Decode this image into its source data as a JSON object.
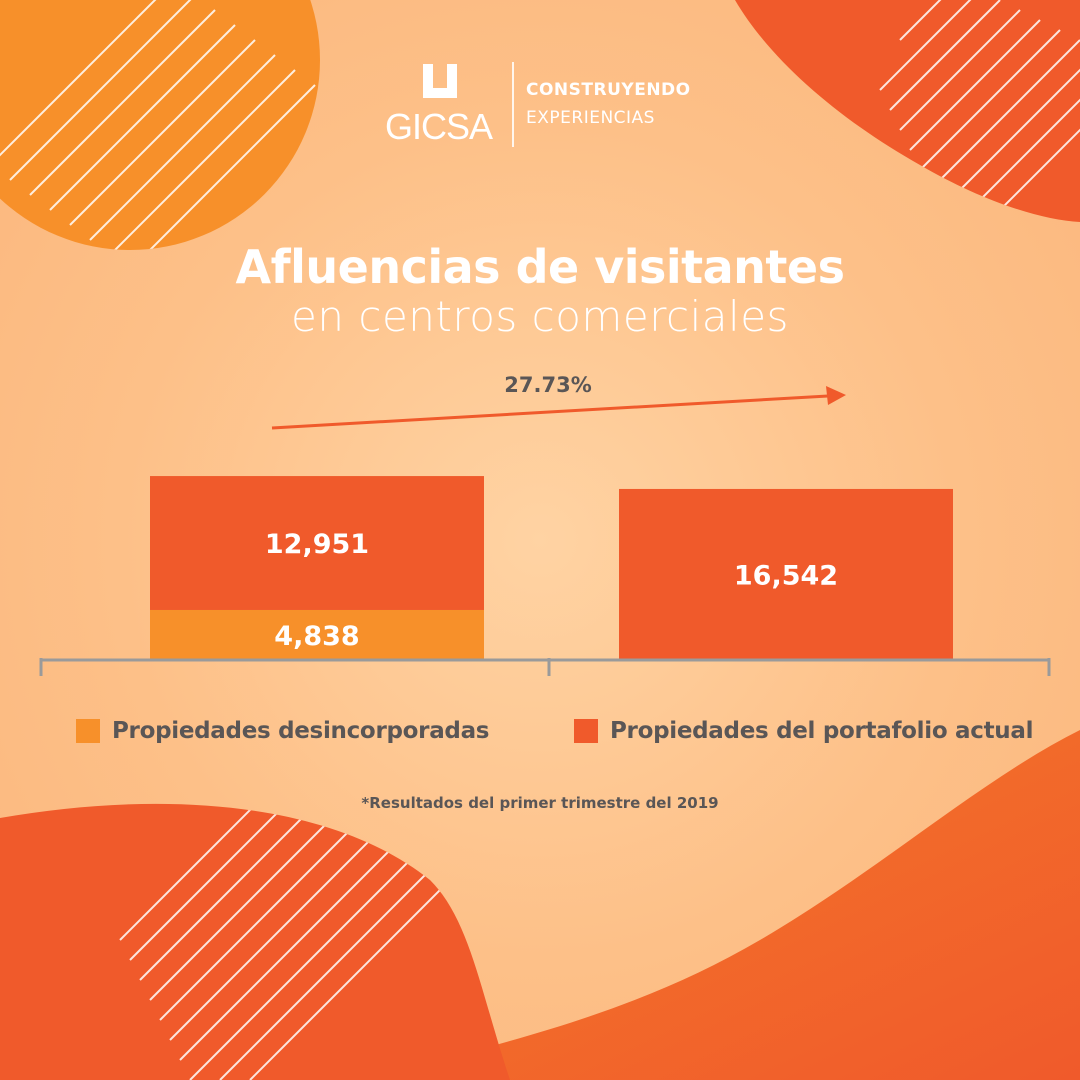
{
  "brand": {
    "logo_text": "GICSA",
    "tagline_line1": "CONSTRUYENDO",
    "tagline_line2": "EXPERIENCIAS"
  },
  "title": {
    "line1": "Afluencias de visitantes",
    "line2": "en centros comerciales"
  },
  "growth_label": "27.73%",
  "colors": {
    "desincorporadas": "#f7902a",
    "portafolio": "#f05a2b",
    "text_gray": "#5a5656",
    "axis": "#9a9a9a"
  },
  "chart_data": {
    "type": "bar",
    "stacked": true,
    "categories": [
      "",
      ""
    ],
    "series": [
      {
        "name": "Propiedades desincorporadas",
        "values": [
          4838,
          0
        ],
        "labels": [
          "4,838",
          ""
        ]
      },
      {
        "name": "Propiedades del portafolio actual",
        "values": [
          12951,
          16542
        ],
        "labels": [
          "12,951",
          "16,542"
        ]
      }
    ],
    "annotation": "27.73%",
    "legend_position": "bottom"
  },
  "footnote": "*Resultados del primer trimestre del 2019"
}
